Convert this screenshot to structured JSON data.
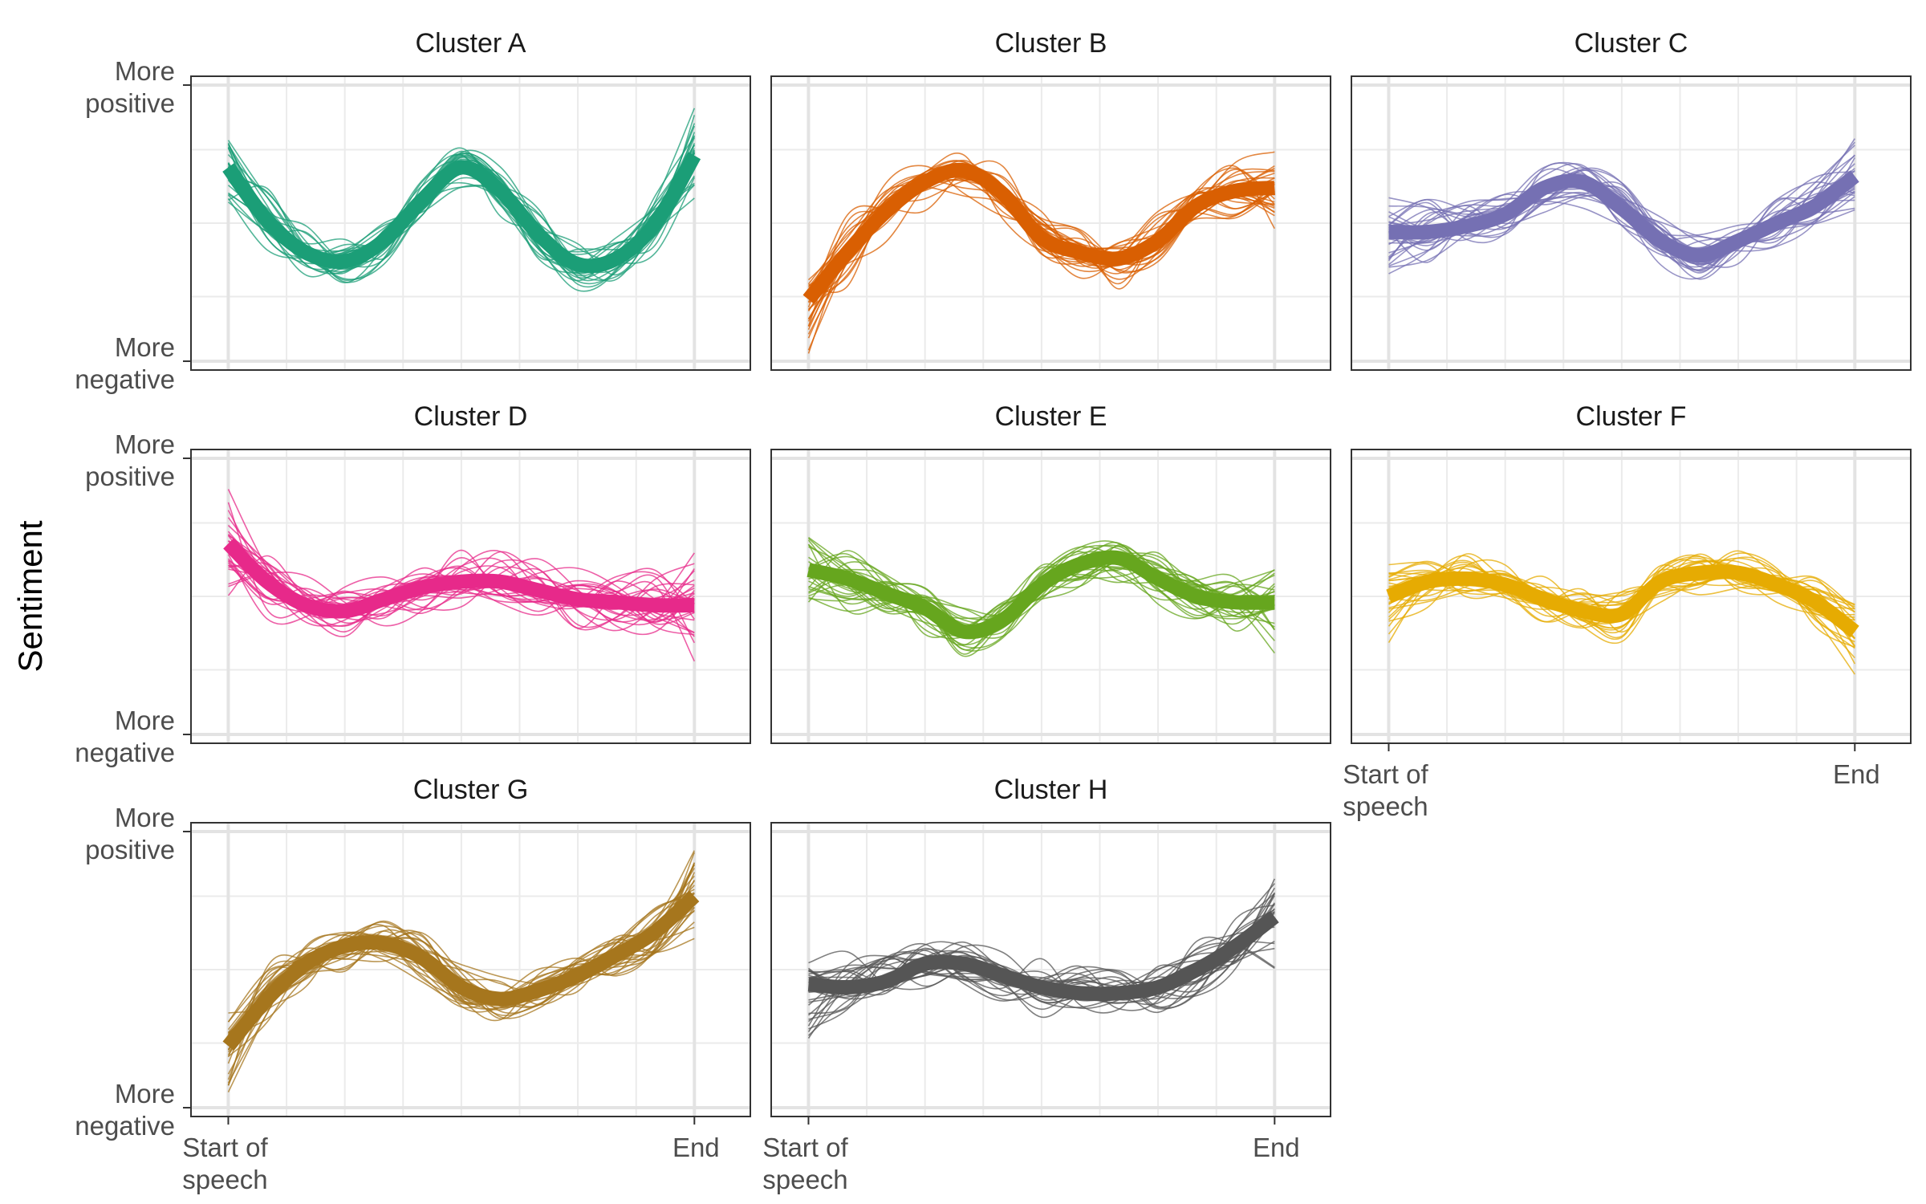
{
  "chart_data": {
    "type": "line",
    "ylabel": "Sentiment",
    "x_ticks": [
      "Start of\nspeech",
      "End"
    ],
    "y_ticks": [
      "More\npositive",
      "More\nnegative"
    ],
    "xlim": [
      -0.08,
      1.12
    ],
    "ylim": [
      0,
      1
    ],
    "grid": true,
    "layout": {
      "rows": 3,
      "cols": 3
    },
    "x_tick_rows": [
      2,
      3
    ],
    "panels": [
      {
        "name": "Cluster A",
        "color": "#1B9E77",
        "spread": 0.055,
        "trend": [
          0.69,
          0.51,
          0.4,
          0.37,
          0.44,
          0.58,
          0.69,
          0.61,
          0.46,
          0.36,
          0.38,
          0.5,
          0.73
        ]
      },
      {
        "name": "Cluster B",
        "color": "#D95F02",
        "spread": 0.06,
        "trend": [
          0.24,
          0.4,
          0.54,
          0.64,
          0.68,
          0.6,
          0.45,
          0.4,
          0.38,
          0.44,
          0.56,
          0.61,
          0.62
        ]
      },
      {
        "name": "Cluster C",
        "color": "#7570B3",
        "spread": 0.055,
        "trend": [
          0.47,
          0.47,
          0.49,
          0.53,
          0.62,
          0.64,
          0.55,
          0.44,
          0.39,
          0.44,
          0.5,
          0.56,
          0.66
        ]
      },
      {
        "name": "Cluster D",
        "color": "#E7298A",
        "spread": 0.065,
        "trend": [
          0.68,
          0.55,
          0.47,
          0.45,
          0.49,
          0.53,
          0.55,
          0.55,
          0.52,
          0.49,
          0.48,
          0.47,
          0.47
        ]
      },
      {
        "name": "Cluster E",
        "color": "#66A61E",
        "spread": 0.055,
        "trend": [
          0.59,
          0.56,
          0.51,
          0.46,
          0.38,
          0.42,
          0.54,
          0.61,
          0.63,
          0.56,
          0.5,
          0.48,
          0.48
        ]
      },
      {
        "name": "Cluster F",
        "color": "#E6AB02",
        "spread": 0.055,
        "trend": [
          0.5,
          0.55,
          0.56,
          0.54,
          0.49,
          0.45,
          0.44,
          0.55,
          0.58,
          0.58,
          0.54,
          0.48,
          0.38
        ]
      },
      {
        "name": "Cluster G",
        "color": "#A6761D",
        "spread": 0.055,
        "trend": [
          0.24,
          0.4,
          0.52,
          0.58,
          0.59,
          0.54,
          0.44,
          0.4,
          0.43,
          0.48,
          0.55,
          0.63,
          0.75
        ]
      },
      {
        "name": "Cluster H",
        "color": "#555555",
        "spread": 0.06,
        "trend": [
          0.45,
          0.44,
          0.46,
          0.52,
          0.52,
          0.48,
          0.44,
          0.42,
          0.42,
          0.44,
          0.5,
          0.58,
          0.68
        ]
      }
    ]
  }
}
